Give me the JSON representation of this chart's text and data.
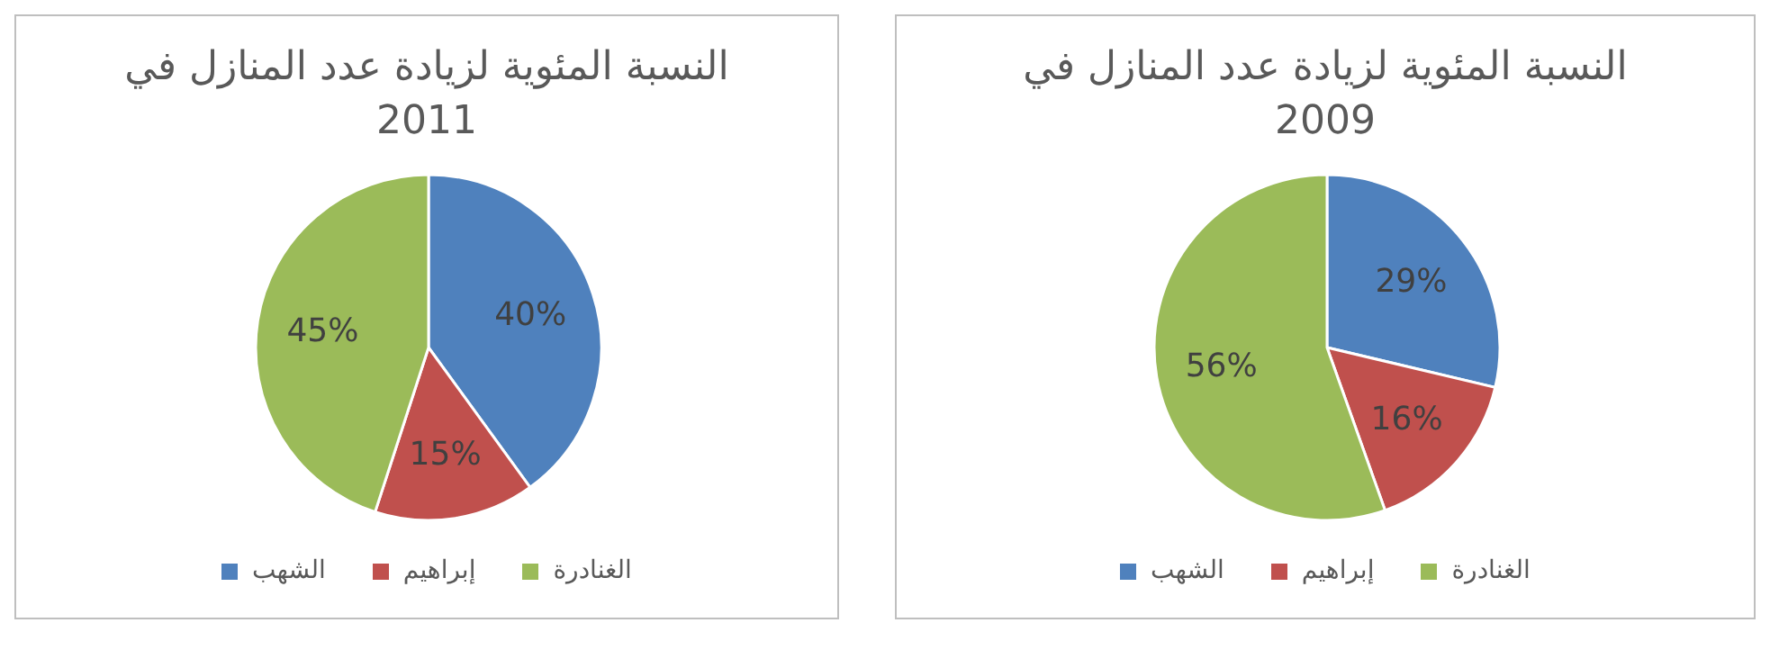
{
  "chart_data": [
    {
      "type": "pie",
      "title": "النسبة المئوية لزيادة عدد المنازل في 2011",
      "categories": [
        "الشهب",
        "إبراهيم",
        "الغنادرة"
      ],
      "values": [
        40,
        15,
        45
      ],
      "value_labels": [
        "40%",
        "15%",
        "45%"
      ],
      "colors": [
        "#4f81bd",
        "#c0504d",
        "#9bbb59"
      ],
      "legend": "bottom"
    },
    {
      "type": "pie",
      "title": "النسبة المئوية لزيادة عدد المنازل في 2009",
      "categories": [
        "الشهب",
        "إبراهيم",
        "الغنادرة"
      ],
      "values": [
        29,
        16,
        56
      ],
      "value_labels": [
        "29%",
        "16%",
        "56%"
      ],
      "colors": [
        "#4f81bd",
        "#c0504d",
        "#9bbb59"
      ],
      "legend": "bottom"
    }
  ]
}
